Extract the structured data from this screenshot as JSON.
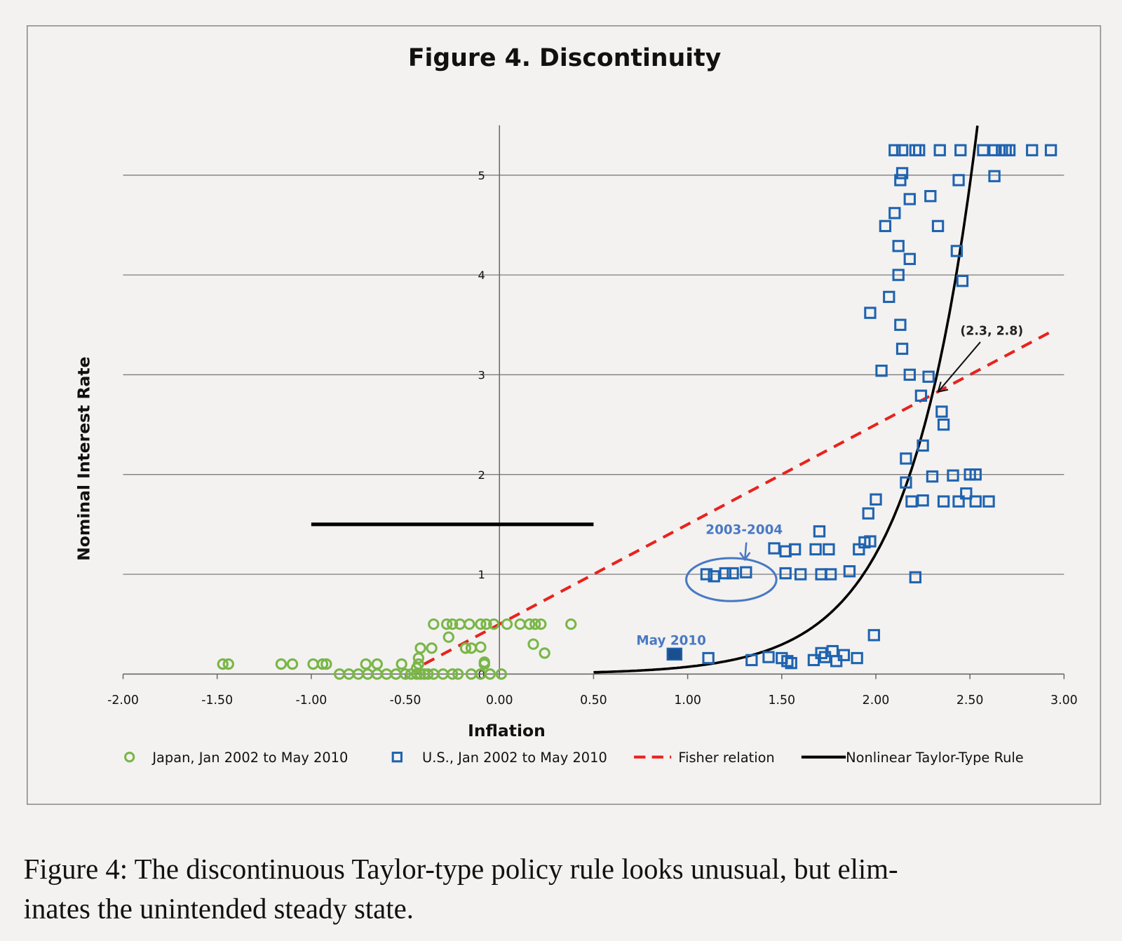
{
  "chart_data": {
    "type": "scatter",
    "title": "Figure 4.  Discontinuity",
    "xlabel": "Inflation",
    "ylabel": "Nominal Interest Rate",
    "xlim": [
      -2.0,
      3.0
    ],
    "ylim": [
      0,
      5.5
    ],
    "x_ticks": [
      "-2.00",
      "-1.50",
      "-1.00",
      "-0.50",
      "0.00",
      "0.50",
      "1.00",
      "1.50",
      "2.00",
      "2.50",
      "3.00"
    ],
    "y_ticks": [
      "0",
      "1",
      "2",
      "3",
      "4",
      "5"
    ],
    "grid": "horizontal",
    "legend_placement": "bottom",
    "colors": {
      "japan": "#7ab648",
      "us": "#1f63b0",
      "fisher": "#e8231e",
      "taylor": "#000000",
      "annotation": "#4a78c4"
    },
    "series": [
      {
        "name": "Japan, Jan 2002 to May 2010",
        "marker": "circle",
        "points": [
          [
            -1.47,
            0.1
          ],
          [
            -1.44,
            0.1
          ],
          [
            -1.16,
            0.1
          ],
          [
            -1.1,
            0.1
          ],
          [
            -0.99,
            0.1
          ],
          [
            -0.94,
            0.1
          ],
          [
            -0.92,
            0.1
          ],
          [
            -0.71,
            0.1
          ],
          [
            -0.65,
            0.1
          ],
          [
            -0.52,
            0.1
          ],
          [
            -0.43,
            0.1
          ],
          [
            -0.08,
            0.1
          ],
          [
            -0.85,
            0
          ],
          [
            -0.8,
            0
          ],
          [
            -0.75,
            0
          ],
          [
            -0.7,
            0
          ],
          [
            -0.65,
            0
          ],
          [
            -0.6,
            0
          ],
          [
            -0.55,
            0
          ],
          [
            -0.5,
            0
          ],
          [
            -0.47,
            0
          ],
          [
            -0.44,
            0
          ],
          [
            -0.42,
            0
          ],
          [
            -0.4,
            0
          ],
          [
            -0.38,
            0
          ],
          [
            -0.35,
            0
          ],
          [
            -0.3,
            0
          ],
          [
            -0.25,
            0
          ],
          [
            -0.22,
            0
          ],
          [
            -0.15,
            0
          ],
          [
            -0.1,
            0
          ],
          [
            -0.05,
            0
          ],
          [
            0.01,
            0
          ],
          [
            -0.35,
            0.5
          ],
          [
            -0.28,
            0.5
          ],
          [
            -0.25,
            0.5
          ],
          [
            -0.21,
            0.5
          ],
          [
            -0.16,
            0.5
          ],
          [
            -0.1,
            0.5
          ],
          [
            -0.07,
            0.5
          ],
          [
            -0.03,
            0.5
          ],
          [
            0.04,
            0.5
          ],
          [
            0.11,
            0.5
          ],
          [
            0.16,
            0.5
          ],
          [
            0.19,
            0.5
          ],
          [
            0.22,
            0.5
          ],
          [
            0.38,
            0.5
          ],
          [
            -0.27,
            0.37
          ],
          [
            -0.42,
            0.26
          ],
          [
            -0.36,
            0.26
          ],
          [
            -0.18,
            0.26
          ],
          [
            -0.15,
            0.26
          ],
          [
            -0.1,
            0.27
          ],
          [
            0.18,
            0.3
          ],
          [
            0.24,
            0.21
          ],
          [
            -0.43,
            0.16
          ],
          [
            -0.08,
            0.12
          ],
          [
            -0.44,
            0.06
          ]
        ]
      },
      {
        "name": "U.S., Jan 2002 to May 2010",
        "marker": "square",
        "points": [
          [
            2.1,
            5.25
          ],
          [
            2.14,
            5.25
          ],
          [
            2.21,
            5.25
          ],
          [
            2.23,
            5.25
          ],
          [
            2.34,
            5.25
          ],
          [
            2.45,
            5.25
          ],
          [
            2.57,
            5.25
          ],
          [
            2.63,
            5.25
          ],
          [
            2.67,
            5.25
          ],
          [
            2.69,
            5.25
          ],
          [
            2.71,
            5.25
          ],
          [
            2.83,
            5.25
          ],
          [
            2.93,
            5.25
          ],
          [
            2.14,
            5.02
          ],
          [
            2.13,
            4.95
          ],
          [
            2.44,
            4.95
          ],
          [
            2.63,
            4.99
          ],
          [
            2.18,
            4.76
          ],
          [
            2.29,
            4.79
          ],
          [
            2.1,
            4.62
          ],
          [
            2.05,
            4.49
          ],
          [
            2.33,
            4.49
          ],
          [
            2.12,
            4.29
          ],
          [
            2.18,
            4.16
          ],
          [
            2.43,
            4.24
          ],
          [
            2.12,
            4.0
          ],
          [
            2.46,
            3.94
          ],
          [
            2.07,
            3.78
          ],
          [
            1.97,
            3.62
          ],
          [
            2.13,
            3.5
          ],
          [
            2.14,
            3.26
          ],
          [
            2.03,
            3.04
          ],
          [
            2.18,
            3.0
          ],
          [
            2.28,
            2.98
          ],
          [
            2.24,
            2.79
          ],
          [
            2.35,
            2.63
          ],
          [
            2.36,
            2.5
          ],
          [
            2.25,
            2.29
          ],
          [
            2.16,
            2.16
          ],
          [
            2.3,
            1.98
          ],
          [
            2.41,
            1.99
          ],
          [
            2.5,
            2.0
          ],
          [
            2.53,
            2.0
          ],
          [
            2.16,
            1.92
          ],
          [
            2.0,
            1.75
          ],
          [
            1.96,
            1.61
          ],
          [
            2.19,
            1.73
          ],
          [
            2.25,
            1.74
          ],
          [
            2.36,
            1.73
          ],
          [
            2.44,
            1.73
          ],
          [
            2.48,
            1.81
          ],
          [
            2.53,
            1.73
          ],
          [
            2.6,
            1.73
          ],
          [
            1.7,
            1.43
          ],
          [
            1.46,
            1.26
          ],
          [
            1.52,
            1.23
          ],
          [
            1.57,
            1.25
          ],
          [
            1.68,
            1.25
          ],
          [
            1.75,
            1.25
          ],
          [
            1.91,
            1.25
          ],
          [
            1.94,
            1.32
          ],
          [
            1.97,
            1.33
          ],
          [
            1.1,
            1.0
          ],
          [
            1.14,
            0.98
          ],
          [
            1.2,
            1.01
          ],
          [
            1.24,
            1.01
          ],
          [
            1.31,
            1.02
          ],
          [
            1.52,
            1.01
          ],
          [
            1.6,
            1.0
          ],
          [
            1.71,
            1.0
          ],
          [
            1.76,
            1.0
          ],
          [
            1.86,
            1.03
          ],
          [
            2.21,
            0.97
          ],
          [
            1.99,
            0.39
          ],
          [
            1.11,
            0.16
          ],
          [
            1.34,
            0.14
          ],
          [
            1.43,
            0.17
          ],
          [
            1.5,
            0.16
          ],
          [
            1.53,
            0.13
          ],
          [
            1.55,
            0.11
          ],
          [
            1.67,
            0.14
          ],
          [
            1.71,
            0.21
          ],
          [
            1.73,
            0.17
          ],
          [
            1.77,
            0.23
          ],
          [
            1.79,
            0.13
          ],
          [
            1.83,
            0.19
          ],
          [
            1.9,
            0.16
          ]
        ],
        "highlighted_point": [
          0.93,
          0.2
        ]
      },
      {
        "name": "Fisher relation",
        "type": "line",
        "style": "dashed",
        "equation": "i = pi + 0.5",
        "x_range": [
          -0.4,
          2.95
        ]
      },
      {
        "name": "Nonlinear Taylor-Type Rule",
        "type": "line",
        "style": "solid",
        "curve_points": [
          [
            0.5,
            0.02
          ],
          [
            1.0,
            0.07
          ],
          [
            1.5,
            0.3
          ],
          [
            1.8,
            0.69
          ],
          [
            2.0,
            1.2
          ],
          [
            2.2,
            2.12
          ],
          [
            2.3,
            2.8
          ],
          [
            2.4,
            3.7
          ],
          [
            2.54,
            5.5
          ]
        ],
        "segment": {
          "x": [
            -1.0,
            0.5
          ],
          "y": 1.5
        }
      }
    ],
    "annotations": [
      {
        "text": "(2.3, 2.8)",
        "points_to": [
          2.3,
          2.8
        ]
      },
      {
        "text": "2003-2004",
        "circled_range_x": [
          1.1,
          1.31
        ],
        "y": 1.0
      },
      {
        "text": "May 2010",
        "points_to": [
          0.93,
          0.2
        ]
      }
    ]
  },
  "caption": {
    "line1": "Figure 4: The discontinuous Taylor-type policy rule looks unusual, but elim-",
    "line2": "inates the unintended steady state."
  }
}
